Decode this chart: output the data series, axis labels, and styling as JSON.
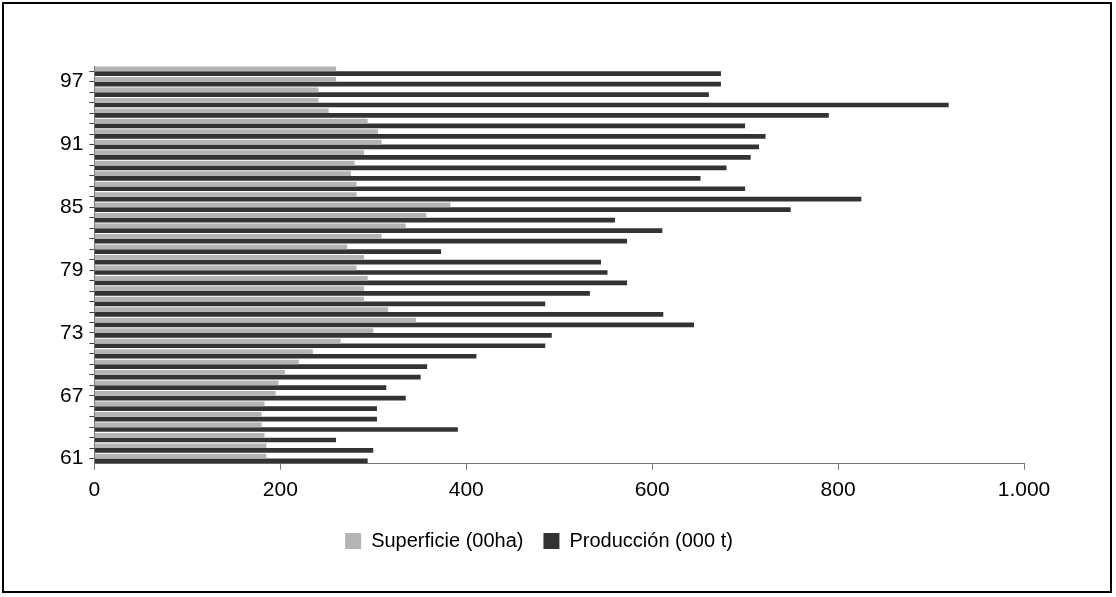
{
  "chart_data": {
    "type": "bar",
    "orientation": "horizontal",
    "categories": [
      null,
      "97",
      null,
      null,
      null,
      null,
      null,
      "91",
      null,
      null,
      null,
      null,
      null,
      "85",
      null,
      null,
      null,
      null,
      null,
      "79",
      null,
      null,
      null,
      null,
      null,
      "73",
      null,
      null,
      null,
      null,
      null,
      "67",
      null,
      null,
      null,
      null,
      null,
      "61"
    ],
    "series": [
      {
        "name": "Superficie (00ha)",
        "color": "#b4b4b4",
        "values": [
          260,
          260,
          241,
          241,
          252,
          294,
          305,
          309,
          290,
          280,
          276,
          282,
          282,
          383,
          357,
          335,
          309,
          272,
          290,
          282,
          294,
          290,
          290,
          316,
          346,
          300,
          265,
          235,
          220,
          205,
          198,
          195,
          183,
          180,
          180,
          183,
          185,
          185
        ]
      },
      {
        "name": "Producción (000 t)",
        "color": "#333333",
        "values": [
          674,
          674,
          661,
          919,
          790,
          700,
          722,
          715,
          706,
          680,
          652,
          700,
          825,
          749,
          560,
          611,
          573,
          373,
          545,
          552,
          573,
          533,
          485,
          612,
          645,
          492,
          485,
          411,
          358,
          351,
          314,
          335,
          304,
          304,
          391,
          260,
          300,
          294
        ]
      }
    ],
    "xlim": [
      0,
      1000
    ],
    "xticks": [
      0,
      200,
      400,
      600,
      800,
      {
        "value": 1000,
        "label": "1.000"
      }
    ],
    "grid": false,
    "legend": "bottom"
  }
}
